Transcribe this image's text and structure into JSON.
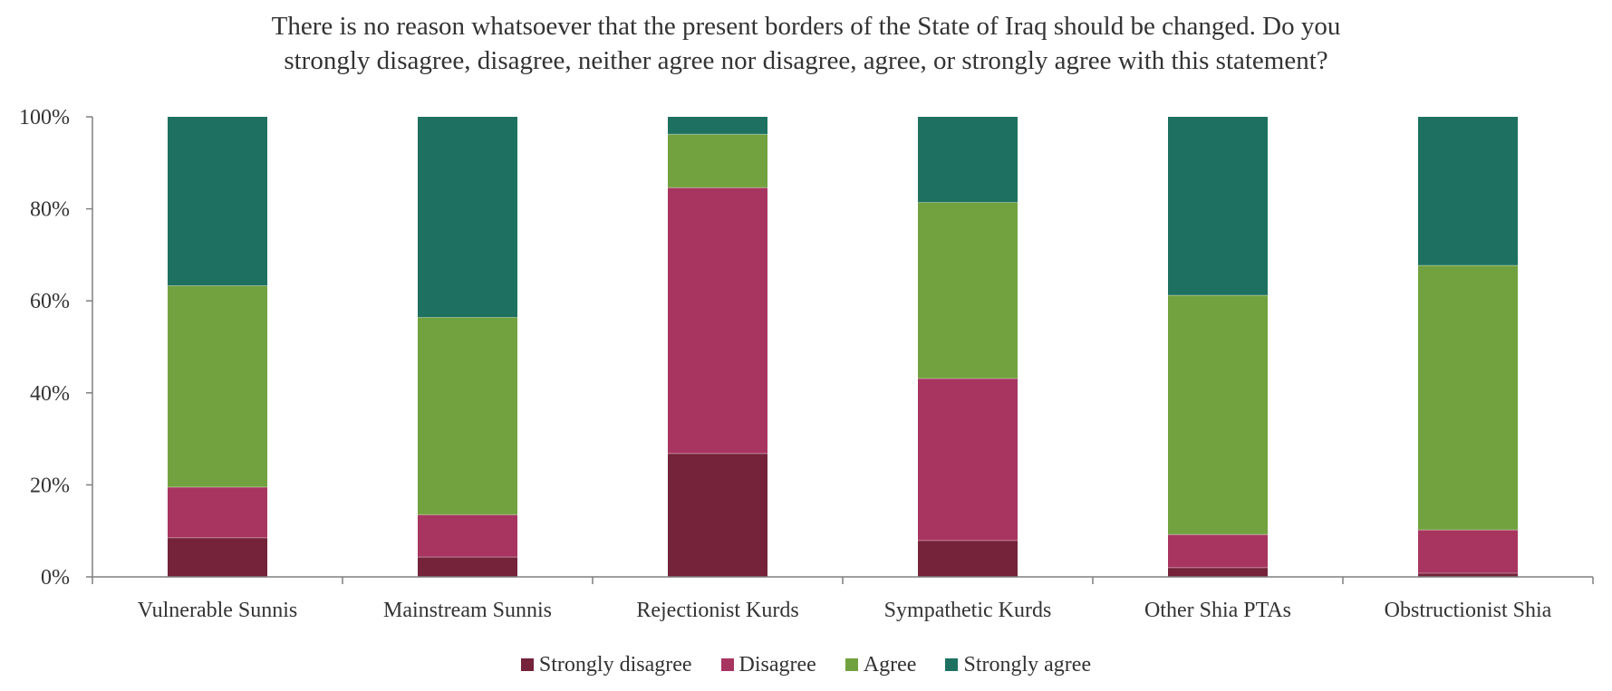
{
  "chart_data": {
    "type": "bar",
    "stacked": true,
    "title": "There is no reason whatsoever that the present borders of the State of Iraq should be changed. Do you strongly disagree, disagree, neither agree nor disagree, agree, or strongly agree with this statement?",
    "title_lines": [
      "There is no reason whatsoever that the present borders of the State of Iraq should be changed. Do you",
      "strongly disagree, disagree, neither agree nor disagree, agree, or strongly agree with this statement?"
    ],
    "xlabel": "",
    "ylabel": "",
    "ylim": [
      0,
      100
    ],
    "yticks": [
      0,
      20,
      40,
      60,
      80,
      100
    ],
    "ytick_labels": [
      "0%",
      "20%",
      "40%",
      "60%",
      "80%",
      "100%"
    ],
    "categories": [
      "Vulnerable Sunnis",
      "Mainstream Sunnis",
      "Rejectionist Kurds",
      "Sympathetic Kurds",
      "Other Shia PTAs",
      "Obstructionist Shia"
    ],
    "series": [
      {
        "name": "Strongly disagree",
        "color": "#74233a",
        "values": [
          8.5,
          4.3,
          26.8,
          7.9,
          2.0,
          0.8
        ]
      },
      {
        "name": "Disagree",
        "color": "#a83560",
        "values": [
          11.0,
          9.2,
          57.8,
          35.2,
          7.2,
          9.4
        ]
      },
      {
        "name": "Agree",
        "color": "#72a23f",
        "values": [
          43.8,
          42.9,
          11.6,
          38.3,
          52.0,
          57.5
        ]
      },
      {
        "name": "Strongly agree",
        "color": "#1e7160",
        "values": [
          36.7,
          43.6,
          3.8,
          18.6,
          38.8,
          32.3
        ]
      }
    ],
    "legend_position": "bottom",
    "grid": false
  }
}
